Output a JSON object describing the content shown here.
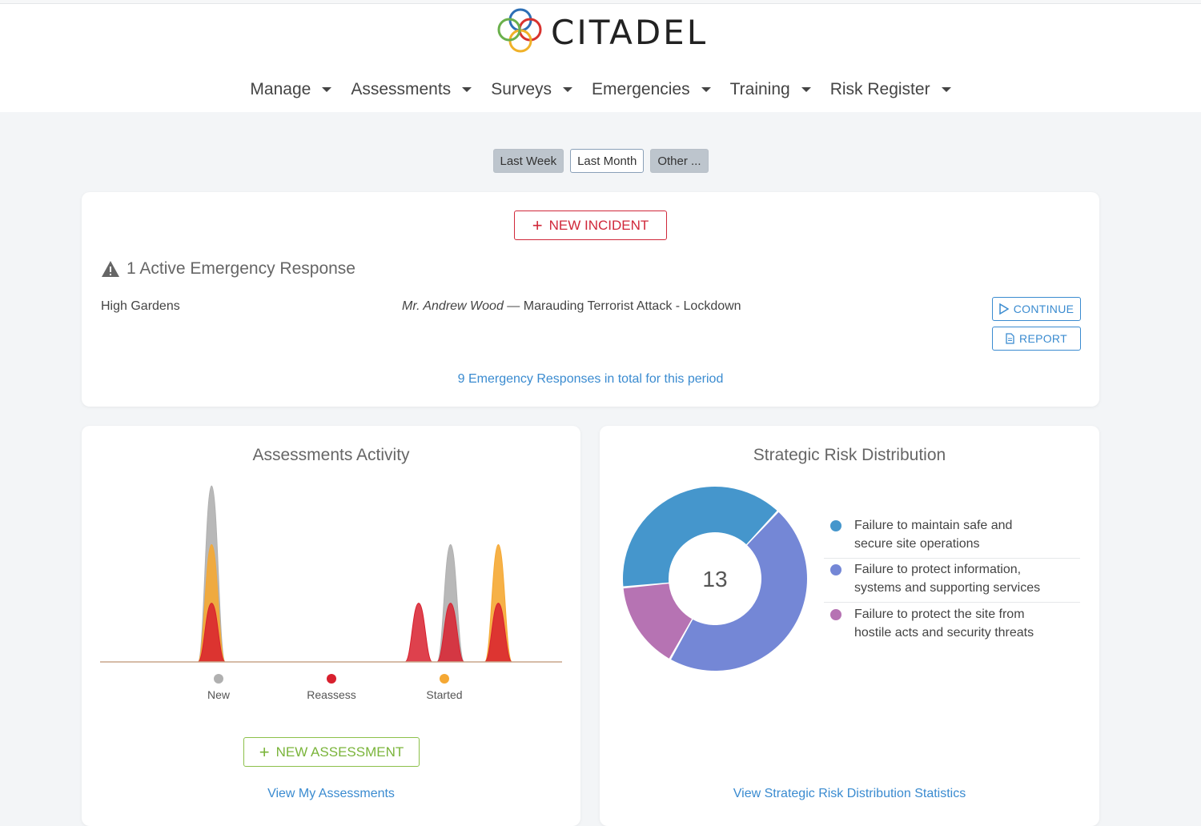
{
  "brand": {
    "name": "CITADEL",
    "logo_colors": [
      "#2d6fb5",
      "#d8322e",
      "#f0b128",
      "#6ab04c"
    ]
  },
  "nav": {
    "items": [
      {
        "label": "Manage"
      },
      {
        "label": "Assessments"
      },
      {
        "label": "Surveys"
      },
      {
        "label": "Emergencies"
      },
      {
        "label": "Training"
      },
      {
        "label": "Risk Register"
      }
    ]
  },
  "period": {
    "last_week": "Last Week",
    "last_month": "Last Month",
    "other": "Other ..."
  },
  "emergency": {
    "new_incident_label": "NEW INCIDENT",
    "active_title": "1 Active Emergency Response",
    "row": {
      "site": "High Gardens",
      "person": "Mr. Andrew Wood",
      "separator": " — ",
      "description": "Marauding Terrorist Attack - Lockdown"
    },
    "continue_label": "CONTINUE",
    "report_label": "REPORT",
    "total_link": "9 Emergency Responses in total for this period",
    "accent_color": "#d0283a"
  },
  "assessments": {
    "title": "Assessments Activity",
    "new_assessment_label": "NEW ASSESSMENT",
    "view_link": "View My Assessments"
  },
  "risk": {
    "title": "Strategic Risk Distribution",
    "total": "13",
    "legend": [
      {
        "label_line1": "Failure to maintain safe and",
        "label_line2": "secure site operations",
        "color": "#4596cc"
      },
      {
        "label_line1": "Failure to protect information,",
        "label_line2": "systems and supporting services",
        "color": "#7487d6"
      },
      {
        "label_line1": "Failure to protect the site from",
        "label_line2": "hostile acts and security threats",
        "color": "#b673b3"
      }
    ],
    "view_link": "View Strategic Risk Distribution Statistics"
  },
  "chart_data": [
    {
      "type": "area",
      "title": "Assessments Activity",
      "x": [
        1,
        2,
        3,
        4,
        5,
        6,
        7,
        8,
        9,
        10,
        11,
        12,
        13,
        14,
        15,
        16,
        17,
        18,
        19,
        20,
        21,
        22,
        23,
        24,
        25,
        26,
        27,
        28,
        29,
        30
      ],
      "series": [
        {
          "name": "New",
          "color": "#b0b0b0",
          "values": [
            0,
            0,
            0,
            0,
            0,
            0,
            0,
            6,
            0,
            0,
            0,
            0,
            0,
            0,
            0,
            0,
            0,
            0,
            0,
            0,
            0,
            0,
            4,
            0,
            0,
            0,
            0,
            0,
            0,
            0
          ]
        },
        {
          "name": "Started",
          "color": "#f5a833",
          "values": [
            0,
            0,
            0,
            0,
            0,
            0,
            0,
            4,
            0,
            0,
            0,
            0,
            0,
            0,
            0,
            0,
            0,
            0,
            0,
            0,
            0,
            0,
            0,
            0,
            0,
            4,
            0,
            0,
            0,
            0
          ]
        },
        {
          "name": "Reassess",
          "color": "#d8202e",
          "values": [
            0,
            0,
            0,
            0,
            0,
            0,
            0,
            2,
            0,
            0,
            0,
            0,
            0,
            0,
            0,
            0,
            0,
            0,
            0,
            0,
            2,
            0,
            2,
            0,
            0,
            2,
            0,
            0,
            0,
            0
          ]
        }
      ],
      "legend_position": "bottom",
      "grid": false
    },
    {
      "type": "pie",
      "title": "Strategic Risk Distribution",
      "center_label": "13",
      "labels": [
        "Failure to maintain safe and secure site operations",
        "Failure to protect information, systems and supporting services",
        "Failure to protect the site from hostile acts and security threats"
      ],
      "values": [
        5,
        6,
        2
      ],
      "colors": [
        "#4596cc",
        "#7487d6",
        "#b673b3"
      ],
      "legend_position": "right"
    }
  ]
}
